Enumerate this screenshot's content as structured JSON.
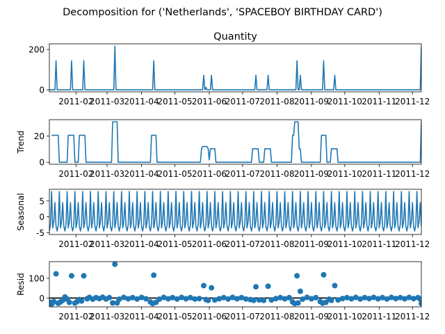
{
  "suptitle": "Decomposition for ('Netherlands', 'SPACEBOY BIRTHDAY CARD')",
  "colors": {
    "line": "#1f77b4",
    "axis": "#000000",
    "background": "#ffffff"
  },
  "x_axis": {
    "range": [
      "2011-01-08",
      "2011-12-09"
    ],
    "tick_dates": [
      "2011-02-01",
      "2011-03-01",
      "2011-04-01",
      "2011-05-01",
      "2011-06-01",
      "2011-07-01",
      "2011-08-01",
      "2011-09-01",
      "2011-10-01",
      "2011-11-01",
      "2011-12-01"
    ],
    "tick_labels": [
      "2011-02",
      "2011-03",
      "2011-04",
      "2011-05",
      "2011-06",
      "2011-07",
      "2011-08",
      "2011-09",
      "2011-10",
      "2011-11",
      "2011-12"
    ]
  },
  "chart_data": [
    {
      "type": "line",
      "title": "Quantity",
      "ylabel": "",
      "ylim": [
        -10,
        228
      ],
      "yticks": [
        0,
        200
      ],
      "points": [
        [
          "2011-01-08",
          0
        ],
        [
          "2011-01-13",
          0
        ],
        [
          "2011-01-14",
          144
        ],
        [
          "2011-01-15",
          0
        ],
        [
          "2011-01-27",
          0
        ],
        [
          "2011-01-28",
          144
        ],
        [
          "2011-01-29",
          0
        ],
        [
          "2011-02-07",
          0
        ],
        [
          "2011-02-08",
          144
        ],
        [
          "2011-02-09",
          0
        ],
        [
          "2011-03-07",
          0
        ],
        [
          "2011-03-08",
          216
        ],
        [
          "2011-03-09",
          0
        ],
        [
          "2011-04-11",
          0
        ],
        [
          "2011-04-12",
          144
        ],
        [
          "2011-04-13",
          0
        ],
        [
          "2011-05-26",
          0
        ],
        [
          "2011-05-27",
          72
        ],
        [
          "2011-05-28",
          0
        ],
        [
          "2011-05-29",
          12
        ],
        [
          "2011-05-30",
          0
        ],
        [
          "2011-06-02",
          0
        ],
        [
          "2011-06-03",
          72
        ],
        [
          "2011-06-04",
          0
        ],
        [
          "2011-07-12",
          0
        ],
        [
          "2011-07-13",
          72
        ],
        [
          "2011-07-14",
          0
        ],
        [
          "2011-07-23",
          0
        ],
        [
          "2011-07-24",
          72
        ],
        [
          "2011-07-25",
          0
        ],
        [
          "2011-08-18",
          0
        ],
        [
          "2011-08-19",
          144
        ],
        [
          "2011-08-20",
          0
        ],
        [
          "2011-08-21",
          0
        ],
        [
          "2011-08-22",
          72
        ],
        [
          "2011-08-23",
          0
        ],
        [
          "2011-09-11",
          0
        ],
        [
          "2011-09-12",
          144
        ],
        [
          "2011-09-13",
          0
        ],
        [
          "2011-09-21",
          0
        ],
        [
          "2011-09-22",
          72
        ],
        [
          "2011-09-23",
          0
        ],
        [
          "2011-12-08",
          0
        ],
        [
          "2011-12-09",
          216
        ]
      ]
    },
    {
      "type": "line",
      "title": "",
      "ylabel": "Trend",
      "ylim": [
        -1.5,
        32.5
      ],
      "yticks": [
        0,
        20
      ],
      "points": [
        [
          "2011-01-10",
          20.6
        ],
        [
          "2011-01-16",
          20.6
        ],
        [
          "2011-01-17",
          0
        ],
        [
          "2011-01-24",
          0
        ],
        [
          "2011-01-25",
          20.6
        ],
        [
          "2011-01-30",
          20.6
        ],
        [
          "2011-01-31",
          0
        ],
        [
          "2011-02-03",
          0
        ],
        [
          "2011-02-04",
          20.6
        ],
        [
          "2011-02-09",
          20.6
        ],
        [
          "2011-02-10",
          0
        ],
        [
          "2011-03-05",
          0
        ],
        [
          "2011-03-06",
          30.9
        ],
        [
          "2011-03-10",
          30.9
        ],
        [
          "2011-03-11",
          0
        ],
        [
          "2011-04-09",
          0
        ],
        [
          "2011-04-10",
          20.6
        ],
        [
          "2011-04-14",
          20.6
        ],
        [
          "2011-04-15",
          0
        ],
        [
          "2011-05-24",
          0
        ],
        [
          "2011-05-25",
          10.3
        ],
        [
          "2011-05-26",
          12
        ],
        [
          "2011-05-30",
          12
        ],
        [
          "2011-05-31",
          10.3
        ],
        [
          "2011-06-01",
          1.7
        ],
        [
          "2011-06-02",
          10.3
        ],
        [
          "2011-06-06",
          10.3
        ],
        [
          "2011-06-07",
          0
        ],
        [
          "2011-07-09",
          0
        ],
        [
          "2011-07-10",
          10.3
        ],
        [
          "2011-07-15",
          10.3
        ],
        [
          "2011-07-16",
          0
        ],
        [
          "2011-07-20",
          0
        ],
        [
          "2011-07-21",
          10.3
        ],
        [
          "2011-07-26",
          10.3
        ],
        [
          "2011-07-27",
          0
        ],
        [
          "2011-08-14",
          0
        ],
        [
          "2011-08-15",
          20.6
        ],
        [
          "2011-08-16",
          20.6
        ],
        [
          "2011-08-17",
          30.9
        ],
        [
          "2011-08-20",
          30.9
        ],
        [
          "2011-08-21",
          10.3
        ],
        [
          "2011-08-22",
          10.3
        ],
        [
          "2011-08-23",
          0
        ],
        [
          "2011-09-09",
          0
        ],
        [
          "2011-09-10",
          20.6
        ],
        [
          "2011-09-14",
          20.6
        ],
        [
          "2011-09-15",
          0
        ],
        [
          "2011-09-18",
          0
        ],
        [
          "2011-09-19",
          10.3
        ],
        [
          "2011-09-24",
          10.3
        ],
        [
          "2011-09-25",
          0
        ],
        [
          "2011-12-08",
          0
        ],
        [
          "2011-12-09",
          30.9
        ]
      ]
    },
    {
      "type": "line",
      "title": "",
      "ylabel": "Seasonal",
      "ylim": [
        -5.6,
        8.7
      ],
      "yticks": [
        -5,
        0,
        5
      ],
      "pattern": {
        "start": "2011-01-08",
        "end": "2011-12-09",
        "step_days": 1,
        "period_values": [
          -4.5,
          -2.5,
          8,
          -3.5,
          -1.5,
          4.5,
          -3
        ]
      }
    },
    {
      "type": "scatter",
      "title": "",
      "ylabel": "Resid",
      "ylim": [
        -45,
        185
      ],
      "yticks": [
        0,
        100
      ],
      "baseline": 0,
      "points": [
        [
          "2011-01-08",
          -28
        ],
        [
          "2011-01-09",
          -22
        ],
        [
          "2011-01-10",
          -30
        ],
        [
          "2011-01-11",
          -25
        ],
        [
          "2011-01-12",
          -18
        ],
        [
          "2011-01-14",
          123
        ],
        [
          "2011-01-16",
          -27
        ],
        [
          "2011-01-18",
          -20
        ],
        [
          "2011-01-20",
          -12
        ],
        [
          "2011-01-22",
          5
        ],
        [
          "2011-01-24",
          -5
        ],
        [
          "2011-01-26",
          -22
        ],
        [
          "2011-01-28",
          113
        ],
        [
          "2011-01-31",
          -26
        ],
        [
          "2011-02-02",
          -18
        ],
        [
          "2011-02-04",
          -8
        ],
        [
          "2011-02-06",
          -15
        ],
        [
          "2011-02-08",
          113
        ],
        [
          "2011-02-11",
          -4
        ],
        [
          "2011-02-13",
          3
        ],
        [
          "2011-02-16",
          -6
        ],
        [
          "2011-02-19",
          2
        ],
        [
          "2011-02-22",
          -3
        ],
        [
          "2011-02-25",
          4
        ],
        [
          "2011-02-28",
          -5
        ],
        [
          "2011-03-03",
          2
        ],
        [
          "2011-03-06",
          -25
        ],
        [
          "2011-03-08",
          172
        ],
        [
          "2011-03-10",
          -25
        ],
        [
          "2011-03-12",
          -6
        ],
        [
          "2011-03-16",
          3
        ],
        [
          "2011-03-20",
          -4
        ],
        [
          "2011-03-24",
          2
        ],
        [
          "2011-03-28",
          -5
        ],
        [
          "2011-04-01",
          3
        ],
        [
          "2011-04-05",
          -4
        ],
        [
          "2011-04-09",
          -20
        ],
        [
          "2011-04-11",
          -28
        ],
        [
          "2011-04-12",
          116
        ],
        [
          "2011-04-14",
          -22
        ],
        [
          "2011-04-17",
          -6
        ],
        [
          "2011-04-21",
          3
        ],
        [
          "2011-04-25",
          -4
        ],
        [
          "2011-04-29",
          2
        ],
        [
          "2011-05-03",
          -5
        ],
        [
          "2011-05-07",
          3
        ],
        [
          "2011-05-11",
          -4
        ],
        [
          "2011-05-15",
          2
        ],
        [
          "2011-05-19",
          -5
        ],
        [
          "2011-05-23",
          -3
        ],
        [
          "2011-05-27",
          63
        ],
        [
          "2011-05-29",
          -8
        ],
        [
          "2011-05-31",
          -12
        ],
        [
          "2011-06-03",
          52
        ],
        [
          "2011-06-06",
          -10
        ],
        [
          "2011-06-10",
          -4
        ],
        [
          "2011-06-14",
          2
        ],
        [
          "2011-06-18",
          -5
        ],
        [
          "2011-06-22",
          3
        ],
        [
          "2011-06-26",
          -4
        ],
        [
          "2011-06-30",
          2
        ],
        [
          "2011-07-04",
          -5
        ],
        [
          "2011-07-08",
          -8
        ],
        [
          "2011-07-11",
          -12
        ],
        [
          "2011-07-13",
          57
        ],
        [
          "2011-07-16",
          -10
        ],
        [
          "2011-07-20",
          -12
        ],
        [
          "2011-07-24",
          60
        ],
        [
          "2011-07-27",
          -10
        ],
        [
          "2011-07-31",
          -3
        ],
        [
          "2011-08-04",
          2
        ],
        [
          "2011-08-08",
          -4
        ],
        [
          "2011-08-12",
          2
        ],
        [
          "2011-08-15",
          -20
        ],
        [
          "2011-08-17",
          -28
        ],
        [
          "2011-08-19",
          113
        ],
        [
          "2011-08-20",
          -25
        ],
        [
          "2011-08-22",
          34
        ],
        [
          "2011-08-24",
          -6
        ],
        [
          "2011-08-28",
          3
        ],
        [
          "2011-09-01",
          -4
        ],
        [
          "2011-09-05",
          2
        ],
        [
          "2011-09-09",
          -18
        ],
        [
          "2011-09-11",
          -26
        ],
        [
          "2011-09-12",
          118
        ],
        [
          "2011-09-14",
          -22
        ],
        [
          "2011-09-17",
          -6
        ],
        [
          "2011-09-19",
          -12
        ],
        [
          "2011-09-22",
          63
        ],
        [
          "2011-09-25",
          -10
        ],
        [
          "2011-09-29",
          -3
        ],
        [
          "2011-10-03",
          2
        ],
        [
          "2011-10-07",
          -4
        ],
        [
          "2011-10-11",
          3
        ],
        [
          "2011-10-15",
          -5
        ],
        [
          "2011-10-19",
          2
        ],
        [
          "2011-10-23",
          -3
        ],
        [
          "2011-10-27",
          3
        ],
        [
          "2011-10-31",
          -4
        ],
        [
          "2011-11-04",
          2
        ],
        [
          "2011-11-08",
          -5
        ],
        [
          "2011-11-12",
          3
        ],
        [
          "2011-11-16",
          -3
        ],
        [
          "2011-11-20",
          2
        ],
        [
          "2011-11-24",
          -4
        ],
        [
          "2011-11-28",
          3
        ],
        [
          "2011-12-02",
          -3
        ],
        [
          "2011-12-06",
          2
        ],
        [
          "2011-12-08",
          -6
        ],
        [
          "2011-12-09",
          -28
        ]
      ]
    }
  ]
}
